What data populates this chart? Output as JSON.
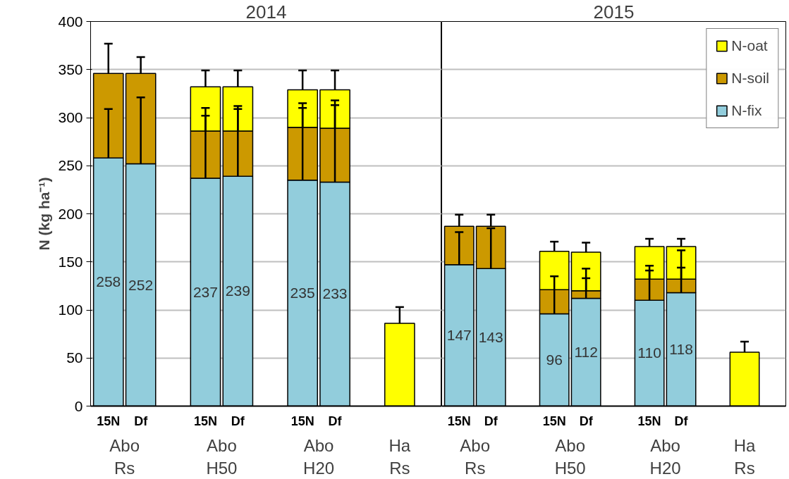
{
  "chart_data": [
    {
      "type": "bar",
      "stacked": true,
      "title": "2014",
      "ylabel": "N (kg ha⁻¹)",
      "categories": [
        "15N",
        "Df",
        null,
        "15N",
        "Df",
        null,
        "15N",
        "Df",
        null,
        null
      ],
      "annotations": [
        "Abo\nRs",
        "Abo\nH50",
        "Abo\nH20",
        "Ha\nRs"
      ],
      "ylim": [
        0,
        400
      ],
      "yticks": [
        0,
        50,
        100,
        150,
        200,
        250,
        300,
        350,
        400
      ],
      "grid": "y",
      "series": [
        {
          "color": "#92cddc",
          "values": [
            258,
            252,
            null,
            237,
            239,
            null,
            235,
            233,
            null,
            null
          ],
          "errors": [
            [
              258,
              309
            ],
            [
              252,
              321
            ],
            null,
            [
              237,
              310
            ],
            [
              239,
              312
            ],
            null,
            [
              235,
              315
            ],
            [
              233,
              318
            ],
            null,
            null
          ],
          "value_labels": [
            "258",
            "252",
            null,
            "237",
            "239",
            null,
            "235",
            "233",
            null,
            null
          ]
        },
        {
          "color": "#cc9900",
          "values": [
            88,
            94,
            null,
            49,
            47,
            null,
            55,
            56,
            null,
            null
          ],
          "errors": [
            [
              346,
              377
            ],
            [
              346,
              363
            ],
            null,
            [
              286,
              302
            ],
            [
              286,
              309
            ],
            null,
            [
              290,
              310
            ],
            [
              289,
              313
            ],
            null,
            null
          ]
        },
        {
          "color": "#ffff00",
          "values": [
            null,
            null,
            null,
            46,
            46,
            null,
            39,
            40,
            null,
            86
          ],
          "errors": [
            null,
            null,
            null,
            [
              332,
              349
            ],
            [
              332,
              349
            ],
            null,
            [
              329,
              349
            ],
            [
              329,
              349
            ],
            null,
            [
              86,
              103
            ]
          ]
        }
      ]
    },
    {
      "type": "bar",
      "stacked": true,
      "title": "2015",
      "categories": [
        "15N",
        "Df",
        null,
        "15N",
        "Df",
        null,
        "15N",
        "Df",
        null,
        null
      ],
      "annotations": [
        "Abo\nRs",
        "Abo\nH50",
        "Abo\nH20",
        "Ha\nRs"
      ],
      "ylim": [
        0,
        400
      ],
      "yticks": [
        0,
        50,
        100,
        150,
        200,
        250,
        300,
        350,
        400
      ],
      "grid": "y",
      "tick_labels": "x",
      "legend": "top right",
      "series": [
        {
          "name": "N-fix",
          "color": "#92cddc",
          "values": [
            147,
            143,
            null,
            96,
            112,
            null,
            110,
            118,
            null,
            null
          ],
          "errors": [
            [
              147,
              181
            ],
            [
              143,
              185
            ],
            null,
            [
              96,
              135
            ],
            [
              112,
              143
            ],
            null,
            [
              110,
              146
            ],
            [
              118,
              162
            ],
            null,
            null
          ],
          "value_labels": [
            "147",
            "143",
            null,
            "96",
            "112",
            null,
            "110",
            "118",
            null,
            null
          ]
        },
        {
          "name": "N-soil",
          "color": "#cc9900",
          "values": [
            40,
            44,
            null,
            25,
            8,
            null,
            22,
            14,
            null,
            null
          ],
          "errors": [
            [
              187,
              199
            ],
            [
              187,
              199
            ],
            null,
            null,
            [
              120,
              133
            ],
            null,
            [
              132,
              141
            ],
            [
              132,
              144
            ],
            null,
            null
          ]
        },
        {
          "name": "N-oat",
          "color": "#ffff00",
          "values": [
            null,
            null,
            null,
            40,
            40,
            null,
            34,
            34,
            null,
            56
          ],
          "errors": [
            null,
            null,
            null,
            [
              161,
              171
            ],
            [
              160,
              170
            ],
            null,
            [
              166,
              174
            ],
            [
              166,
              174
            ],
            null,
            [
              56,
              67
            ]
          ]
        }
      ]
    }
  ]
}
